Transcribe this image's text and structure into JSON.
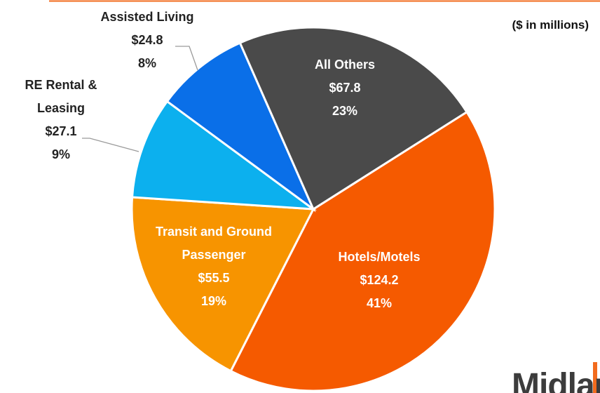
{
  "chart_data": {
    "type": "pie",
    "subtitle": "($ in millions)",
    "categories": [
      "Hotels/Motels",
      "Transit and Ground Passenger",
      "RE Rental & Leasing",
      "Assisted Living",
      "All Others"
    ],
    "values": [
      124.2,
      55.5,
      27.1,
      24.8,
      67.8
    ],
    "value_labels": [
      "$124.2",
      "$55.5",
      "$27.1",
      "$24.8",
      "$67.8"
    ],
    "percents": [
      41,
      19,
      9,
      8,
      23
    ],
    "percent_labels": [
      "41%",
      "19%",
      "9%",
      "8%",
      "23%"
    ],
    "colors": [
      "#f55a00",
      "#f79400",
      "#0cb0ee",
      "#0a6fe8",
      "#4a4a4a"
    ]
  },
  "logo": "Midland"
}
